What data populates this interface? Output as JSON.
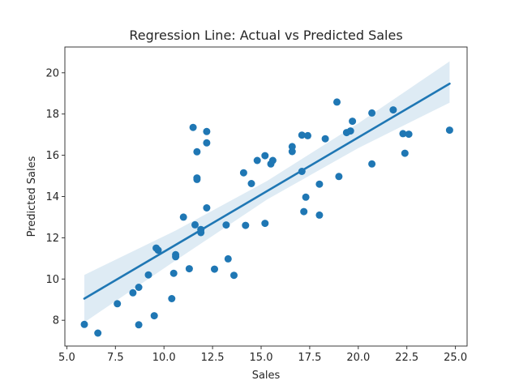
{
  "chart_data": {
    "type": "scatter",
    "title": "Regression Line: Actual vs Predicted Sales",
    "xlabel": "Sales",
    "ylabel": "Predicted Sales",
    "xlim": [
      4.9,
      25.6
    ],
    "ylim": [
      6.75,
      21.25
    ],
    "xticks": [
      5.0,
      7.5,
      10.0,
      12.5,
      15.0,
      17.5,
      20.0,
      22.5,
      25.0
    ],
    "xtick_labels": [
      "5.0",
      "7.5",
      "10.0",
      "12.5",
      "15.0",
      "17.5",
      "20.0",
      "22.5",
      "25.0"
    ],
    "yticks": [
      8,
      10,
      12,
      14,
      16,
      18,
      20
    ],
    "ytick_labels": [
      "8",
      "10",
      "12",
      "14",
      "16",
      "18",
      "20"
    ],
    "grid": false,
    "colors": {
      "points": "#1f77b4",
      "line": "#1f77b4",
      "band": "#1f77b4"
    },
    "points": [
      [
        5.9,
        7.8
      ],
      [
        6.6,
        7.38
      ],
      [
        7.6,
        8.8
      ],
      [
        8.4,
        9.33
      ],
      [
        8.7,
        7.78
      ],
      [
        8.7,
        9.6
      ],
      [
        9.2,
        10.2
      ],
      [
        9.5,
        8.22
      ],
      [
        9.6,
        11.5
      ],
      [
        9.7,
        11.4
      ],
      [
        10.4,
        9.05
      ],
      [
        10.5,
        10.28
      ],
      [
        10.6,
        11.18
      ],
      [
        10.6,
        11.08
      ],
      [
        11.0,
        13.0
      ],
      [
        11.3,
        10.5
      ],
      [
        11.5,
        17.35
      ],
      [
        11.6,
        12.63
      ],
      [
        11.7,
        16.17
      ],
      [
        11.7,
        14.9
      ],
      [
        11.7,
        14.83
      ],
      [
        11.9,
        12.4
      ],
      [
        11.9,
        12.25
      ],
      [
        12.2,
        13.45
      ],
      [
        12.2,
        16.6
      ],
      [
        12.2,
        17.15
      ],
      [
        12.6,
        10.48
      ],
      [
        13.2,
        12.62
      ],
      [
        13.3,
        10.98
      ],
      [
        13.6,
        10.18
      ],
      [
        14.1,
        15.15
      ],
      [
        14.2,
        12.6
      ],
      [
        14.5,
        14.63
      ],
      [
        14.8,
        15.75
      ],
      [
        15.2,
        15.98
      ],
      [
        15.2,
        12.7
      ],
      [
        15.5,
        15.58
      ],
      [
        15.6,
        15.75
      ],
      [
        16.6,
        16.18
      ],
      [
        16.6,
        16.42
      ],
      [
        17.1,
        15.22
      ],
      [
        17.1,
        16.98
      ],
      [
        17.2,
        13.27
      ],
      [
        17.3,
        13.97
      ],
      [
        17.4,
        16.95
      ],
      [
        18.0,
        13.1
      ],
      [
        18.0,
        14.6
      ],
      [
        18.3,
        16.8
      ],
      [
        18.9,
        18.58
      ],
      [
        19.0,
        14.97
      ],
      [
        19.4,
        17.1
      ],
      [
        19.6,
        17.18
      ],
      [
        19.7,
        17.65
      ],
      [
        20.7,
        18.05
      ],
      [
        20.7,
        15.58
      ],
      [
        21.8,
        18.2
      ],
      [
        22.3,
        17.05
      ],
      [
        22.4,
        16.1
      ],
      [
        22.6,
        17.02
      ],
      [
        24.7,
        17.22
      ]
    ],
    "regression_line": {
      "x": [
        5.9,
        24.7
      ],
      "y": [
        9.05,
        19.47
      ]
    },
    "confidence_band": {
      "x": [
        5.9,
        10.6,
        15.3,
        20.0,
        24.7
      ],
      "lower": [
        7.9,
        10.9,
        13.85,
        16.35,
        18.55
      ],
      "upper": [
        10.2,
        12.35,
        14.75,
        17.55,
        20.55
      ]
    }
  }
}
